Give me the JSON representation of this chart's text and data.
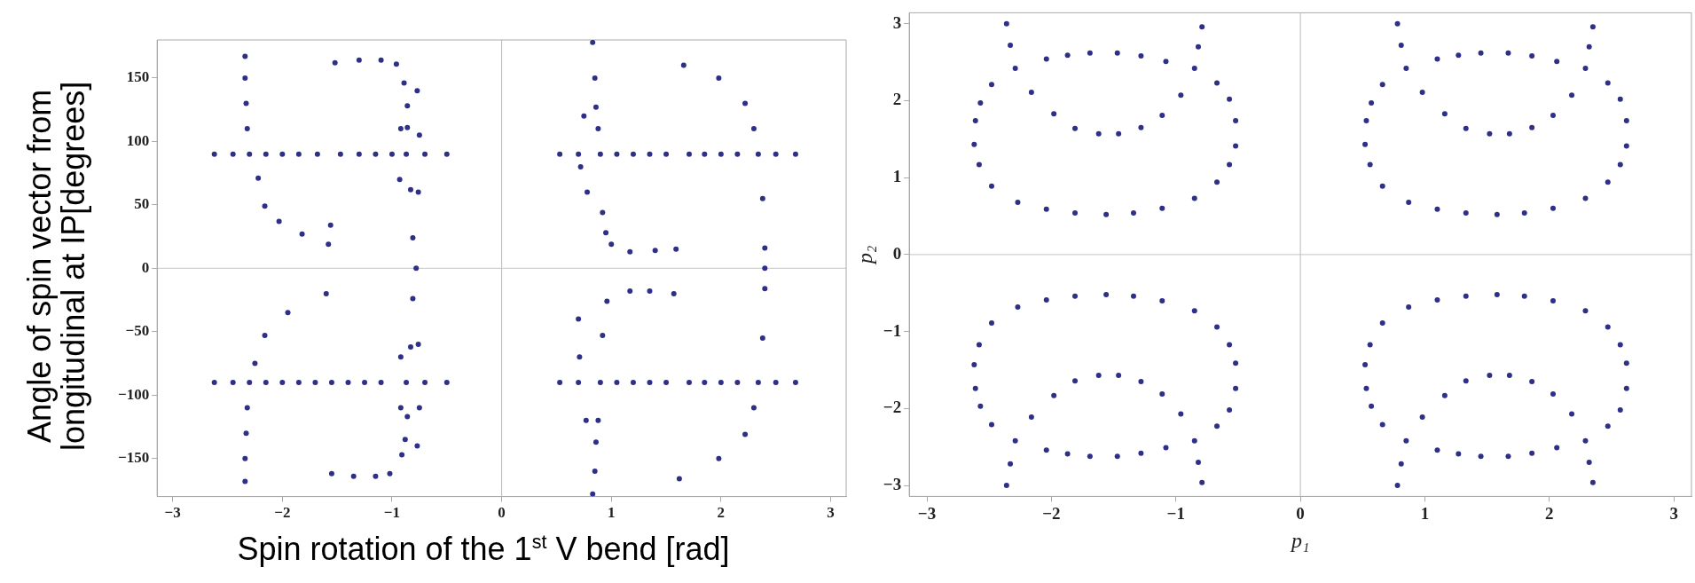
{
  "chart_data": [
    {
      "type": "scatter",
      "xlabel": "Spin rotation of the 1$^{st}$ V bend [rad]",
      "ylabel": "Angle of spin vector from longitudinal at IP[degrees]",
      "marker": "circle",
      "xlim": [
        -3.1416,
        3.1416
      ],
      "xticks": [
        -3,
        -2,
        -1,
        0,
        1,
        2,
        3
      ],
      "ylim": [
        -180,
        180
      ],
      "yticks": [
        150,
        100,
        50,
        0,
        -50,
        -100,
        -150
      ],
      "ref_lines": [
        {
          "axis": "x",
          "value": 0,
          "color": "#b8b8b8"
        },
        {
          "axis": "y",
          "value": 0,
          "color": "#c4c4c4"
        }
      ],
      "series": [
        {
          "color": "#2e3087",
          "x": [
            -2.62,
            -2.45,
            -2.3,
            -2.15,
            -2.0,
            -1.85,
            -1.68,
            -1.47,
            -1.3,
            -1.15,
            -1.0,
            -0.87,
            -0.7,
            -0.5,
            0.53,
            0.7,
            0.9,
            1.05,
            1.2,
            1.35,
            1.5,
            1.71,
            1.85,
            2.0,
            2.15,
            2.34,
            2.5,
            2.68
          ],
          "values": [
            90,
            90,
            90,
            90,
            90,
            90,
            90,
            90,
            90,
            90,
            90,
            90,
            90,
            90,
            90,
            90,
            90,
            90,
            90,
            90,
            90,
            90,
            90,
            90,
            90,
            90,
            90,
            90
          ]
        },
        {
          "color": "#2e3087",
          "x": [
            -2.62,
            -2.45,
            -2.3,
            -2.15,
            -2.0,
            -1.85,
            -1.7,
            -1.55,
            -1.4,
            -1.25,
            -1.1,
            -0.87,
            -0.7,
            -0.5,
            0.53,
            0.7,
            0.9,
            1.05,
            1.2,
            1.35,
            1.5,
            1.71,
            1.85,
            2.0,
            2.15,
            2.34,
            2.5,
            2.68
          ],
          "values": [
            -90,
            -90,
            -90,
            -90,
            -90,
            -90,
            -90,
            -90,
            -90,
            -90,
            -90,
            -90,
            -90,
            -90,
            -90,
            -90,
            -90,
            -90,
            -90,
            -90,
            -90,
            -90,
            -90,
            -90,
            -90,
            -90,
            -90,
            -90
          ]
        },
        {
          "color": "#2e3087",
          "x": [
            -2.34,
            -2.34,
            -2.33,
            -2.32,
            -2.22,
            -2.16,
            -2.03,
            -1.82,
            -1.58,
            -1.56,
            -1.6,
            -1.95,
            -2.16,
            -2.25,
            -2.32,
            -2.33,
            -2.34,
            -2.34
          ],
          "values": [
            167,
            150,
            130,
            110,
            71,
            49,
            37,
            27,
            19,
            34,
            -20,
            -35,
            -53,
            -75,
            -110,
            -130,
            -150,
            -168
          ]
        },
        {
          "color": "#2e3087",
          "x": [
            -1.52,
            -1.3,
            -1.1,
            -0.96,
            -0.89,
            -0.86,
            -0.86,
            -0.83,
            -0.81,
            -0.78,
            -0.81,
            -0.83,
            -0.86,
            -0.88,
            -0.91,
            -1.02,
            -1.15,
            -1.35,
            -1.55,
            -0.77,
            -0.92,
            -0.75,
            -0.93,
            -0.76,
            -0.92,
            -0.76,
            -0.75,
            -0.92,
            -0.77
          ],
          "values": [
            162,
            164,
            164,
            161,
            146,
            128,
            111,
            62,
            24,
            0,
            -24,
            -62,
            -117,
            -135,
            -147,
            -162,
            -164,
            -164,
            -162,
            140,
            110,
            105,
            70,
            60,
            -70,
            -60,
            -110,
            -110,
            -140
          ]
        },
        {
          "color": "#2e3087",
          "x": [
            0.83,
            0.85,
            0.86,
            0.92,
            0.95,
            1.0,
            1.17,
            1.4,
            1.59,
            1.57,
            1.35,
            1.17,
            0.96,
            0.92,
            0.86,
            0.85,
            0.83,
            0.75,
            0.72,
            0.78,
            0.88,
            0.71,
            0.77,
            0.7,
            0.88
          ],
          "values": [
            178,
            150,
            127,
            44,
            28,
            19,
            13,
            14,
            15,
            -20,
            -18,
            -18,
            -26,
            -53,
            -137,
            -160,
            -178,
            120,
            80,
            60,
            110,
            -70,
            -120,
            -40,
            -120
          ]
        },
        {
          "color": "#2e3087",
          "x": [
            1.66,
            1.98,
            2.22,
            2.3,
            2.38,
            2.4,
            2.4,
            2.4,
            2.38,
            2.3,
            2.22,
            1.98,
            1.62
          ],
          "values": [
            160,
            150,
            130,
            110,
            55,
            16,
            0,
            -16,
            -55,
            -110,
            -131,
            -150,
            -166
          ]
        }
      ]
    },
    {
      "type": "scatter",
      "xlabel": "p₁",
      "ylabel": "p₂",
      "marker": "circle",
      "xlim": [
        -3.1416,
        3.1416
      ],
      "xticks": [
        -3,
        -2,
        -1,
        0,
        1,
        2,
        3
      ],
      "ylim": [
        -3.1416,
        3.1416
      ],
      "yticks": [
        -3,
        -2,
        -1,
        0,
        1,
        2,
        3
      ],
      "ref_lines": [
        {
          "axis": "x",
          "value": 0,
          "color": "#b8b8b8"
        },
        {
          "axis": "y",
          "value": 0,
          "color": "#c4c4c4"
        }
      ],
      "series": [
        {
          "color": "#2e3087",
          "x": [
            -2.36,
            -2.33,
            -2.29,
            -0.79,
            -0.82,
            -0.85,
            -2.61,
            -2.57,
            -2.48,
            -2.04,
            -1.87,
            -1.69,
            -1.47,
            -1.28,
            -1.08,
            -0.67,
            -0.57,
            -0.52,
            -2.16,
            -1.98,
            -1.81,
            -1.62,
            -1.46,
            -1.28,
            -1.11,
            -0.96,
            -2.62,
            -2.58,
            -2.48,
            -2.27,
            -2.04,
            -1.81,
            -1.56,
            -1.34,
            -1.11,
            -0.85,
            -0.67,
            -0.57,
            -0.52
          ],
          "values": [
            3.0,
            2.72,
            2.42,
            2.96,
            2.7,
            2.42,
            1.74,
            1.97,
            2.21,
            2.54,
            2.59,
            2.62,
            2.62,
            2.58,
            2.51,
            2.23,
            2.02,
            1.74,
            2.11,
            1.83,
            1.64,
            1.57,
            1.57,
            1.65,
            1.81,
            2.07,
            1.43,
            1.17,
            0.89,
            0.68,
            0.59,
            0.54,
            0.52,
            0.54,
            0.6,
            0.73,
            0.94,
            1.17,
            1.41
          ]
        },
        {
          "color": "#2e3087",
          "x": [
            0.78,
            0.81,
            0.85,
            2.35,
            2.32,
            2.29,
            0.53,
            0.57,
            0.66,
            1.1,
            1.27,
            1.45,
            1.67,
            1.86,
            2.06,
            2.47,
            2.57,
            2.62,
            0.98,
            1.16,
            1.33,
            1.52,
            1.68,
            1.86,
            2.03,
            2.18,
            0.52,
            0.56,
            0.66,
            0.87,
            1.1,
            1.33,
            1.58,
            1.8,
            2.03,
            2.29,
            2.47,
            2.57,
            2.62
          ],
          "values": [
            3.0,
            2.72,
            2.42,
            2.96,
            2.7,
            2.42,
            1.74,
            1.97,
            2.21,
            2.54,
            2.59,
            2.62,
            2.62,
            2.58,
            2.51,
            2.23,
            2.02,
            1.74,
            2.11,
            1.83,
            1.64,
            1.57,
            1.57,
            1.65,
            1.81,
            2.07,
            1.43,
            1.17,
            0.89,
            0.68,
            0.59,
            0.54,
            0.52,
            0.54,
            0.6,
            0.73,
            0.94,
            1.17,
            1.41
          ]
        },
        {
          "color": "#2e3087",
          "x": [
            -2.36,
            -2.33,
            -2.29,
            -0.79,
            -0.82,
            -0.85,
            -2.61,
            -2.57,
            -2.48,
            -2.04,
            -1.87,
            -1.69,
            -1.47,
            -1.28,
            -1.08,
            -0.67,
            -0.57,
            -0.52,
            -2.16,
            -1.98,
            -1.81,
            -1.62,
            -1.46,
            -1.28,
            -1.11,
            -0.96,
            -2.62,
            -2.58,
            -2.48,
            -2.27,
            -2.04,
            -1.81,
            -1.56,
            -1.34,
            -1.11,
            -0.85,
            -0.67,
            -0.57,
            -0.52
          ],
          "values": [
            -3.0,
            -2.72,
            -2.42,
            -2.96,
            -2.7,
            -2.42,
            -1.74,
            -1.97,
            -2.21,
            -2.54,
            -2.59,
            -2.62,
            -2.62,
            -2.58,
            -2.51,
            -2.23,
            -2.02,
            -1.74,
            -2.11,
            -1.83,
            -1.64,
            -1.57,
            -1.57,
            -1.65,
            -1.81,
            -2.07,
            -1.43,
            -1.17,
            -0.89,
            -0.68,
            -0.59,
            -0.54,
            -0.52,
            -0.54,
            -0.6,
            -0.73,
            -0.94,
            -1.17,
            -1.41
          ]
        },
        {
          "color": "#2e3087",
          "x": [
            0.78,
            0.81,
            0.85,
            2.35,
            2.32,
            2.29,
            0.53,
            0.57,
            0.66,
            1.1,
            1.27,
            1.45,
            1.67,
            1.86,
            2.06,
            2.47,
            2.57,
            2.62,
            0.98,
            1.16,
            1.33,
            1.52,
            1.68,
            1.86,
            2.03,
            2.18,
            0.52,
            0.56,
            0.66,
            0.87,
            1.1,
            1.33,
            1.58,
            1.8,
            2.03,
            2.29,
            2.47,
            2.57,
            2.62
          ],
          "values": [
            -3.0,
            -2.72,
            -2.42,
            -2.96,
            -2.7,
            -2.42,
            -1.74,
            -1.97,
            -2.21,
            -2.54,
            -2.59,
            -2.62,
            -2.62,
            -2.58,
            -2.51,
            -2.23,
            -2.02,
            -1.74,
            -2.11,
            -1.83,
            -1.64,
            -1.57,
            -1.57,
            -1.65,
            -1.81,
            -2.07,
            -1.43,
            -1.17,
            -0.89,
            -0.68,
            -0.59,
            -0.54,
            -0.52,
            -0.54,
            -0.6,
            -0.73,
            -0.94,
            -1.17,
            -1.41
          ]
        }
      ]
    }
  ]
}
